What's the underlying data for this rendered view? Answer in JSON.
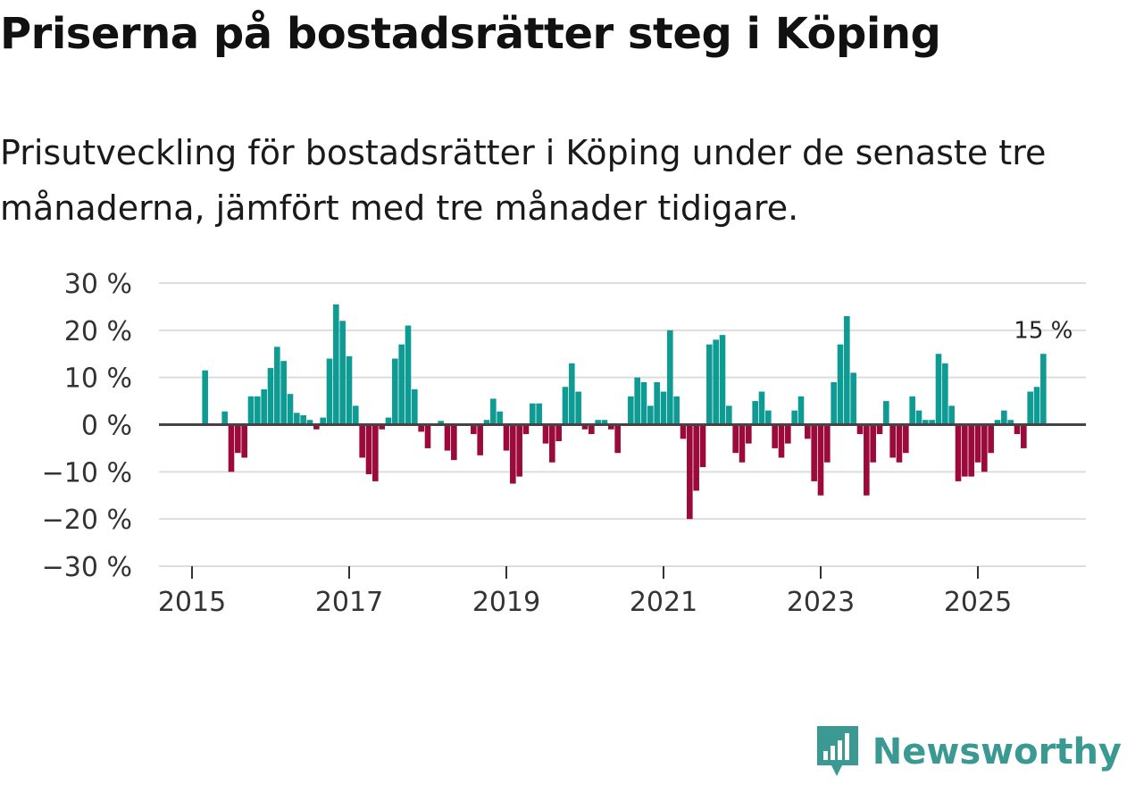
{
  "title": "Priserna på bostadsrätter steg i Köping",
  "subtitle": "Prisutveckling för bostadsrätter i Köping under de senaste tre månaderna, jämfört med tre månader tidigare.",
  "brand": {
    "name": "Newsworthy",
    "icon": "newsworthy-logo-icon"
  },
  "colors": {
    "positive": "#0e9b93",
    "negative": "#9c0a3c",
    "grid": "#dddddd",
    "zero": "#444444",
    "brand": "#3a9a93"
  },
  "chart_data": {
    "type": "bar",
    "start": {
      "year": 2015,
      "month": 1
    },
    "ylim": [
      -30,
      30
    ],
    "y_ticks": [
      30,
      20,
      10,
      0,
      -10,
      -20,
      -30
    ],
    "y_tick_labels": [
      "30 %",
      "20 %",
      "10 %",
      "0 %",
      "−10 %",
      "−20 %",
      "−30 %"
    ],
    "x_ticks": [
      2015,
      2017,
      2019,
      2021,
      2023,
      2025
    ],
    "x_tick_labels": [
      "2015",
      "2017",
      "2019",
      "2021",
      "2023",
      "2025"
    ],
    "unit": "%",
    "values": [
      null,
      null,
      11.5,
      null,
      null,
      2.8,
      -10,
      -6,
      -7,
      6,
      6,
      7.5,
      12,
      16.5,
      13.5,
      6.5,
      2.5,
      2,
      1,
      -1,
      1.5,
      14,
      25.5,
      22,
      14.5,
      4,
      -7,
      -10.5,
      -12,
      -1,
      1.5,
      14,
      17,
      21,
      7.5,
      -1.5,
      -5,
      null,
      0.8,
      -5.5,
      -7.5,
      null,
      null,
      -2,
      -6.5,
      1,
      5.5,
      2.8,
      -5.5,
      -12.5,
      -11,
      -2,
      4.5,
      4.5,
      -4,
      -8,
      -3.5,
      8,
      13,
      7,
      -1,
      -2,
      1,
      1,
      -1,
      -6,
      null,
      6,
      10,
      9,
      4,
      9,
      7,
      20,
      6,
      -3,
      -20,
      -14,
      -9,
      17,
      18,
      19,
      4,
      -6,
      -8,
      -4,
      5,
      7,
      3,
      -5,
      -7,
      -4,
      3,
      6,
      -3,
      -12,
      -15,
      -8,
      9,
      17,
      23,
      11,
      -2,
      -15,
      -8,
      -2,
      5,
      -7,
      -8,
      -6,
      6,
      3,
      1,
      1,
      15,
      13,
      4,
      -12,
      -11,
      -11,
      -8,
      -10,
      -6,
      1,
      3,
      1,
      -2,
      -5,
      7,
      8,
      15
    ],
    "annotation": {
      "label": "15 %",
      "index": 130
    }
  }
}
